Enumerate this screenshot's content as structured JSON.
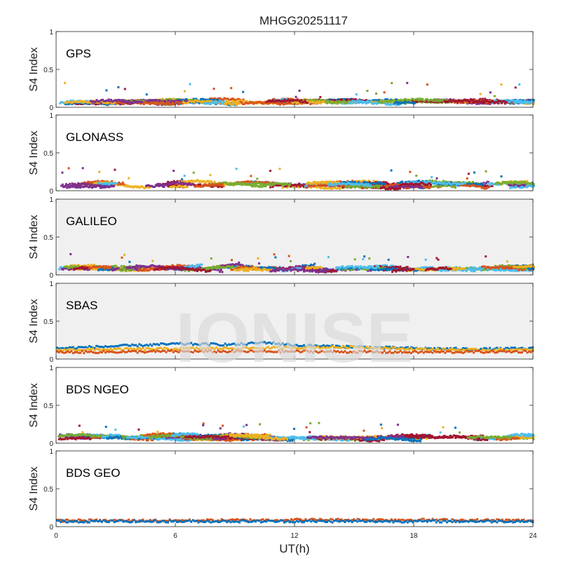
{
  "figure": {
    "title": "MHGG20251117",
    "xlabel": "UT(h)",
    "watermark": "IONISE"
  },
  "chart_data": {
    "type": "scatter",
    "shared_x": {
      "label": "UT(h)",
      "range": [
        0,
        24
      ],
      "ticks": [
        0,
        6,
        12,
        18,
        24
      ],
      "tick_labels": [
        "0",
        "6",
        "12",
        "18",
        "24"
      ]
    },
    "panels": [
      {
        "label": "GPS",
        "ylabel": "S4 Index",
        "ylim": [
          0,
          1
        ],
        "y_ticks": [
          0,
          0.5,
          1
        ],
        "y_tick_labels": [
          "0",
          "0.5",
          "1"
        ],
        "background": "#ffffff",
        "series_colors": [
          "#0072bd",
          "#d95319",
          "#edb120",
          "#7e2f8e",
          "#77ac30",
          "#4dbeee",
          "#a2142f"
        ],
        "typical_s4": [
          0.05,
          0.12
        ],
        "peak_s4": 0.33
      },
      {
        "label": "GLONASS",
        "ylabel": "S4 Index",
        "ylim": [
          0,
          1
        ],
        "y_ticks": [
          0,
          0.5,
          1
        ],
        "y_tick_labels": [
          "0",
          "0.5",
          "1"
        ],
        "background": "#ffffff",
        "series_colors": [
          "#0072bd",
          "#d95319",
          "#edb120",
          "#7e2f8e",
          "#77ac30",
          "#4dbeee",
          "#a2142f"
        ],
        "typical_s4": [
          0.04,
          0.15
        ],
        "peak_s4": 0.3
      },
      {
        "label": "GALILEO",
        "ylabel": "S4 Index",
        "ylim": [
          0,
          1
        ],
        "y_ticks": [
          0,
          0.5,
          1
        ],
        "y_tick_labels": [
          "0",
          "0.5",
          "1"
        ],
        "background": "#f0f0f0",
        "series_colors": [
          "#0072bd",
          "#d95319",
          "#edb120",
          "#7e2f8e",
          "#77ac30",
          "#4dbeee",
          "#a2142f"
        ],
        "typical_s4": [
          0.05,
          0.15
        ],
        "peak_s4": 0.28
      },
      {
        "label": "SBAS",
        "ylabel": "S4 Index",
        "ylim": [
          0,
          1
        ],
        "y_ticks": [
          0,
          0.5,
          1
        ],
        "y_tick_labels": [
          "0",
          "0.5",
          "1"
        ],
        "background": "#f0f0f0",
        "series": [
          {
            "color": "#0072bd",
            "x": [
              0,
              3,
              6,
              9,
              10.5,
              12,
              15,
              18,
              21,
              24
            ],
            "y": [
              0.14,
              0.17,
              0.2,
              0.19,
              0.22,
              0.18,
              0.16,
              0.14,
              0.13,
              0.14
            ]
          },
          {
            "color": "#edb120",
            "x": [
              0,
              4,
              8,
              12,
              15,
              18,
              21,
              24
            ],
            "y": [
              0.12,
              0.13,
              0.14,
              0.15,
              0.16,
              0.13,
              0.12,
              0.12
            ]
          },
          {
            "color": "#d95319",
            "x": [
              0,
              6,
              12,
              18,
              24
            ],
            "y": [
              0.09,
              0.1,
              0.1,
              0.09,
              0.1
            ]
          }
        ]
      },
      {
        "label": "BDS NGEO",
        "ylabel": "S4 Index",
        "ylim": [
          0,
          1
        ],
        "y_ticks": [
          0,
          0.5,
          1
        ],
        "y_tick_labels": [
          "0",
          "0.5",
          "1"
        ],
        "background": "#ffffff",
        "series_colors": [
          "#0072bd",
          "#d95319",
          "#edb120",
          "#7e2f8e",
          "#77ac30",
          "#4dbeee",
          "#a2142f"
        ],
        "typical_s4": [
          0.05,
          0.14
        ],
        "peak_s4": 0.27
      },
      {
        "label": "BDS GEO",
        "ylabel": "S4 Index",
        "ylim": [
          0,
          1
        ],
        "y_ticks": [
          0,
          0.5,
          1
        ],
        "y_tick_labels": [
          "0",
          "0.5",
          "1"
        ],
        "background": "#ffffff",
        "series": [
          {
            "color": "#d95319",
            "x": [
              0,
              6,
              12,
              18,
              24
            ],
            "y": [
              0.08,
              0.08,
              0.09,
              0.09,
              0.08
            ]
          },
          {
            "color": "#0072bd",
            "x": [
              0,
              6,
              12,
              18,
              24
            ],
            "y": [
              0.07,
              0.07,
              0.07,
              0.07,
              0.07
            ]
          }
        ]
      }
    ]
  }
}
